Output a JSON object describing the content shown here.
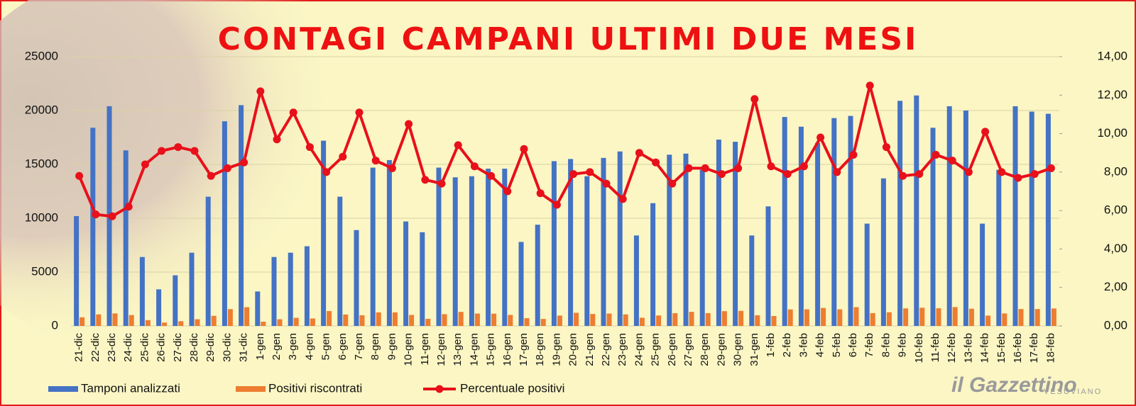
{
  "chart_data": {
    "type": "bar",
    "title": "CONTAGI CAMPANI ULTIMI DUE MESI",
    "categories": [
      "21-dic",
      "22-dic",
      "23-dic",
      "24-dic",
      "25-dic",
      "26-dic",
      "27-dic",
      "28-dic",
      "29-dic",
      "30-dic",
      "31-dic",
      "1-gen",
      "2-gen",
      "3-gen",
      "4-gen",
      "5-gen",
      "6-gen",
      "7-gen",
      "8-gen",
      "9-gen",
      "10-gen",
      "11-gen",
      "12-gen",
      "13-gen",
      "14-gen",
      "15-gen",
      "16-gen",
      "17-gen",
      "18-gen",
      "19-gen",
      "20-gen",
      "21-gen",
      "22-gen",
      "23-gen",
      "24-gen",
      "25-gen",
      "26-gen",
      "27-gen",
      "28-gen",
      "29-gen",
      "30-gen",
      "31-gen",
      "1-feb",
      "2-feb",
      "3-feb",
      "4-feb",
      "5-feb",
      "6-feb",
      "7-feb",
      "8-feb",
      "9-feb",
      "10-feb",
      "11-feb",
      "12-feb",
      "13-feb",
      "14-feb",
      "15-feb",
      "16-feb",
      "17-feb",
      "18-feb"
    ],
    "series": [
      {
        "name": "Tamponi analizzati",
        "color": "#4472c4",
        "values": [
          10200,
          18400,
          20400,
          16300,
          6400,
          3400,
          4700,
          6800,
          12000,
          19000,
          20500,
          3200,
          6400,
          6800,
          7400,
          17200,
          12000,
          8900,
          14700,
          15400,
          9700,
          8700,
          14700,
          13800,
          13900,
          14600,
          14600,
          7800,
          9400,
          15300,
          15500,
          13900,
          15600,
          16200,
          8400,
          11400,
          15900,
          16000,
          14500,
          17300,
          17100,
          8400,
          11100,
          19400,
          18500,
          17000,
          19300,
          19500,
          9500,
          13700,
          20900,
          21400,
          18400,
          20400,
          20000,
          9500,
          14500,
          20400,
          19900,
          19700
        ]
      },
      {
        "name": "Positivi riscontrati",
        "color": "#ed7d31",
        "values": [
          800,
          1070,
          1160,
          1010,
          540,
          310,
          440,
          620,
          940,
          1560,
          1740,
          390,
          620,
          750,
          690,
          1380,
          1060,
          990,
          1260,
          1260,
          1020,
          660,
          1090,
          1300,
          1150,
          1140,
          1020,
          720,
          650,
          960,
          1220,
          1110,
          1150,
          1070,
          760,
          970,
          1180,
          1310,
          1190,
          1370,
          1400,
          990,
          920,
          1530,
          1540,
          1670,
          1540,
          1740,
          1190,
          1270,
          1630,
          1690,
          1640,
          1750,
          1600,
          960,
          1160,
          1570,
          1570,
          1620
        ]
      },
      {
        "name": "Percentuale positivi",
        "color": "#e8101a",
        "type": "line",
        "axis": "y2",
        "values": [
          7.8,
          5.8,
          5.7,
          6.2,
          8.4,
          9.1,
          9.3,
          9.1,
          7.8,
          8.2,
          8.5,
          12.2,
          9.7,
          11.1,
          9.3,
          8.0,
          8.8,
          11.1,
          8.6,
          8.2,
          10.5,
          7.6,
          7.4,
          9.4,
          8.3,
          7.8,
          7.0,
          9.2,
          6.9,
          6.3,
          7.9,
          8.0,
          7.4,
          6.6,
          9.0,
          8.5,
          7.4,
          8.2,
          8.2,
          7.9,
          8.2,
          11.8,
          8.3,
          7.9,
          8.3,
          9.8,
          8.0,
          8.9,
          12.5,
          9.3,
          7.8,
          7.9,
          8.9,
          8.6,
          8.0,
          10.1,
          8.0,
          7.7,
          7.9,
          8.2
        ]
      }
    ],
    "ylim": [
      0,
      25000
    ],
    "yticks": [
      0,
      5000,
      10000,
      15000,
      20000,
      25000
    ],
    "y2lim": [
      0,
      14
    ],
    "y2ticks": [
      {
        "value": 0,
        "label": "0,00"
      },
      {
        "value": 2,
        "label": "2,00"
      },
      {
        "value": 4,
        "label": "4,00"
      },
      {
        "value": 6,
        "label": "6,00"
      },
      {
        "value": 8,
        "label": "8,00"
      },
      {
        "value": 10,
        "label": "10,00"
      },
      {
        "value": 12,
        "label": "12,00"
      },
      {
        "value": 14,
        "label": "14,00"
      }
    ],
    "grid": true,
    "legend": "bottom"
  },
  "logo": {
    "name": "il Gazzettino",
    "subtitle": "VESUVIANO"
  }
}
